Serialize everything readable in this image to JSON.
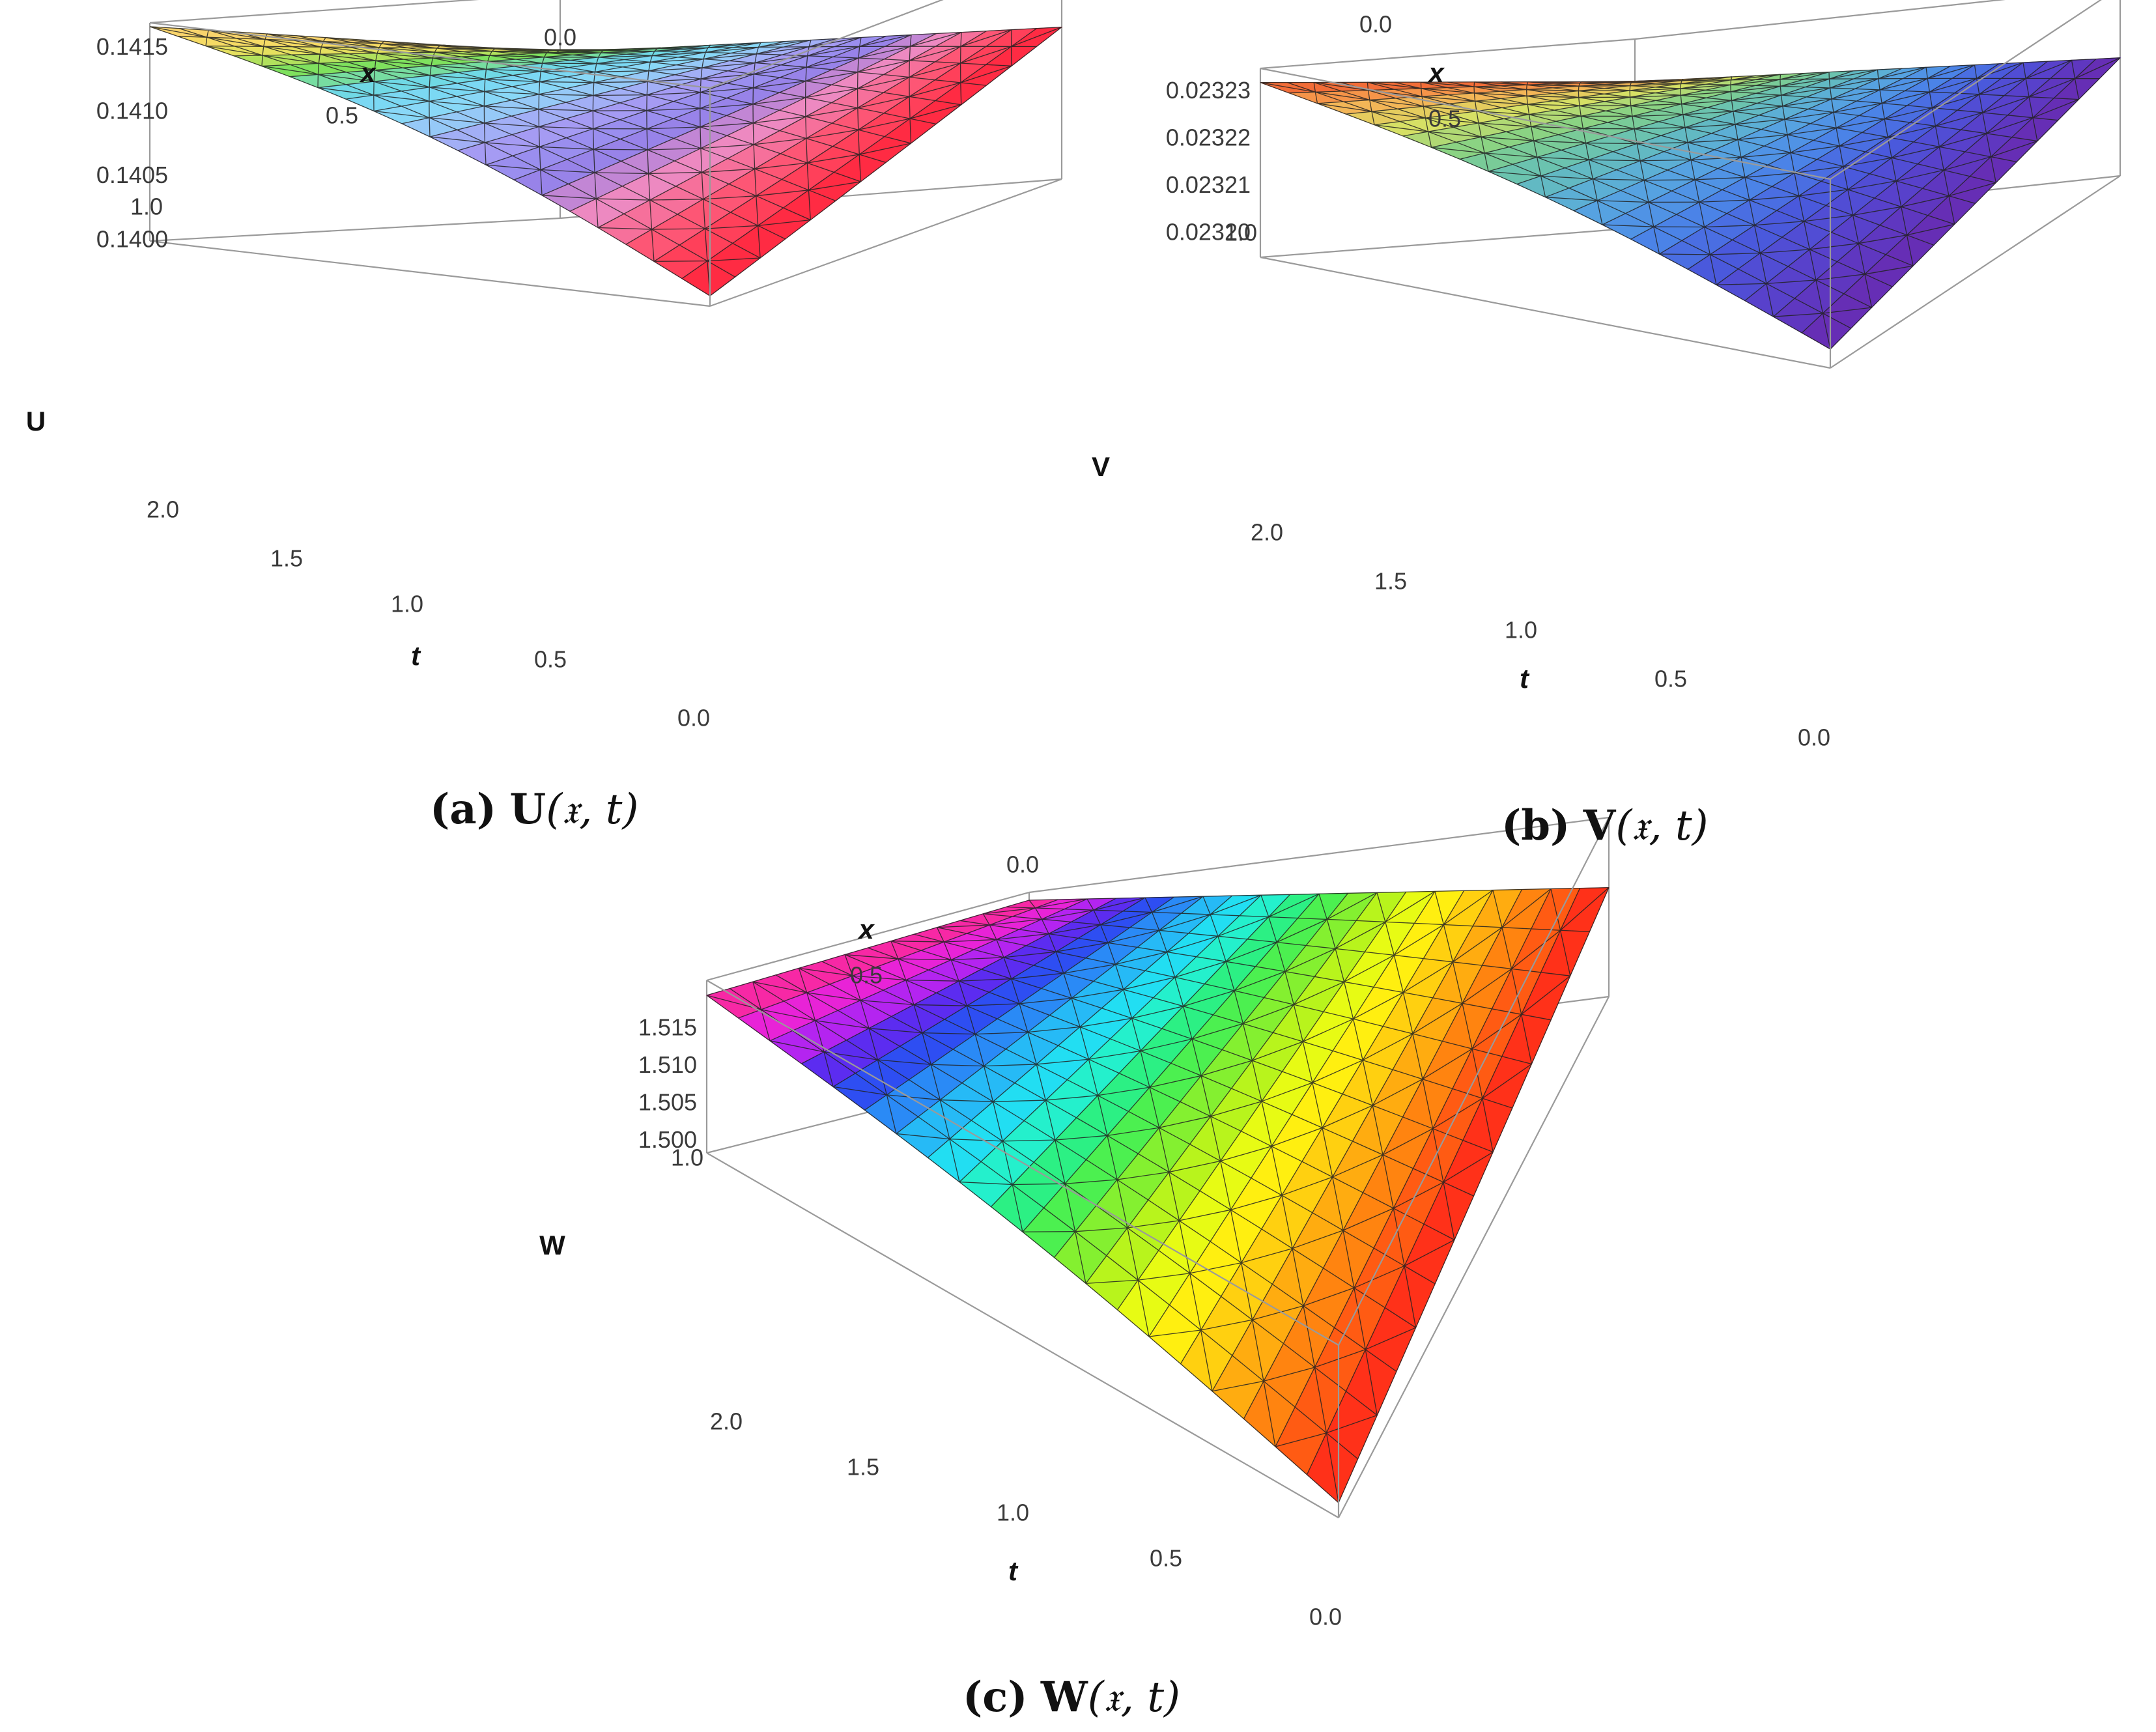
{
  "chart_data": [
    {
      "id": "a",
      "type": "surface",
      "function": "U",
      "caption": {
        "label": "(a)",
        "fn": "U",
        "args": "(𝔵, t)"
      },
      "xlabel": "x",
      "ylabel": "t",
      "zlabel": "U",
      "x_range": [
        0.0,
        1.0
      ],
      "t_range": [
        0.0,
        2.0
      ],
      "zlim": [
        0.14,
        0.1417
      ],
      "x_ticks": [
        "0.0",
        "0.5",
        "1.0"
      ],
      "t_ticks": [
        "0.0",
        "0.5",
        "1.0",
        "1.5",
        "2.0"
      ],
      "z_ticks": [
        "0.1400",
        "0.1405",
        "0.1410",
        "0.1415"
      ],
      "corners": {
        "x0_t0": 0.14115,
        "x0_t2": 0.14125,
        "x1_t0": 0.14008,
        "x1_t2": 0.14167
      },
      "colors": [
        "#fad070",
        "#f4e060",
        "#7fe15a",
        "#6fd8f0",
        "#8fd8f8",
        "#a9a0f5",
        "#9183ec",
        "#ef89c0",
        "#ff4f6a",
        "#ff2038"
      ]
    },
    {
      "id": "b",
      "type": "surface",
      "function": "V",
      "caption": {
        "label": "(b)",
        "fn": "V",
        "args": "(𝔵, t)"
      },
      "xlabel": "x",
      "ylabel": "t",
      "zlabel": "V",
      "x_range": [
        0.0,
        1.0
      ],
      "t_range": [
        0.0,
        2.0
      ],
      "zlim": [
        0.023195,
        0.023235
      ],
      "x_ticks": [
        "0.0",
        "0.5",
        "1.0"
      ],
      "t_ticks": [
        "0.0",
        "0.5",
        "1.0",
        "1.5",
        "2.0"
      ],
      "z_ticks": [
        "0.02320",
        "0.02321",
        "0.02322",
        "0.02323"
      ],
      "corners": {
        "x0_t0": 0.02322,
        "x0_t2": 0.023226,
        "x1_t0": 0.023199,
        "x1_t2": 0.023232
      },
      "colors": [
        "#f05a30",
        "#f7b055",
        "#d8e064",
        "#85d285",
        "#66c0b8",
        "#58a8e0",
        "#4b86e8",
        "#4a58dc",
        "#5a3ec8",
        "#6a2ab0"
      ]
    },
    {
      "id": "c",
      "type": "surface",
      "function": "W",
      "caption": {
        "label": "(c)",
        "fn": "W",
        "args": "(𝔵, t)"
      },
      "xlabel": "x",
      "ylabel": "t",
      "zlabel": "W",
      "x_range": [
        0.0,
        1.0
      ],
      "t_range": [
        0.0,
        2.0
      ],
      "zlim": [
        1.4985,
        1.5215
      ],
      "x_ticks": [
        "0.0",
        "0.5",
        "1.0"
      ],
      "t_ticks": [
        "0.0",
        "0.5",
        "1.0",
        "1.5",
        "2.0"
      ],
      "z_ticks": [
        "1.500",
        "1.505",
        "1.510",
        "1.515"
      ],
      "corners": {
        "x0_t0": 1.5125,
        "x0_t2": 1.5205,
        "x1_t0": 1.5005,
        "x1_t2": 1.5195
      },
      "colors": [
        "#ff2a8c",
        "#e020f0",
        "#3030f0",
        "#28a8f8",
        "#20f0f0",
        "#30f060",
        "#a0f020",
        "#ffff10",
        "#ffc010",
        "#ff7010",
        "#ff1c1c"
      ]
    }
  ]
}
